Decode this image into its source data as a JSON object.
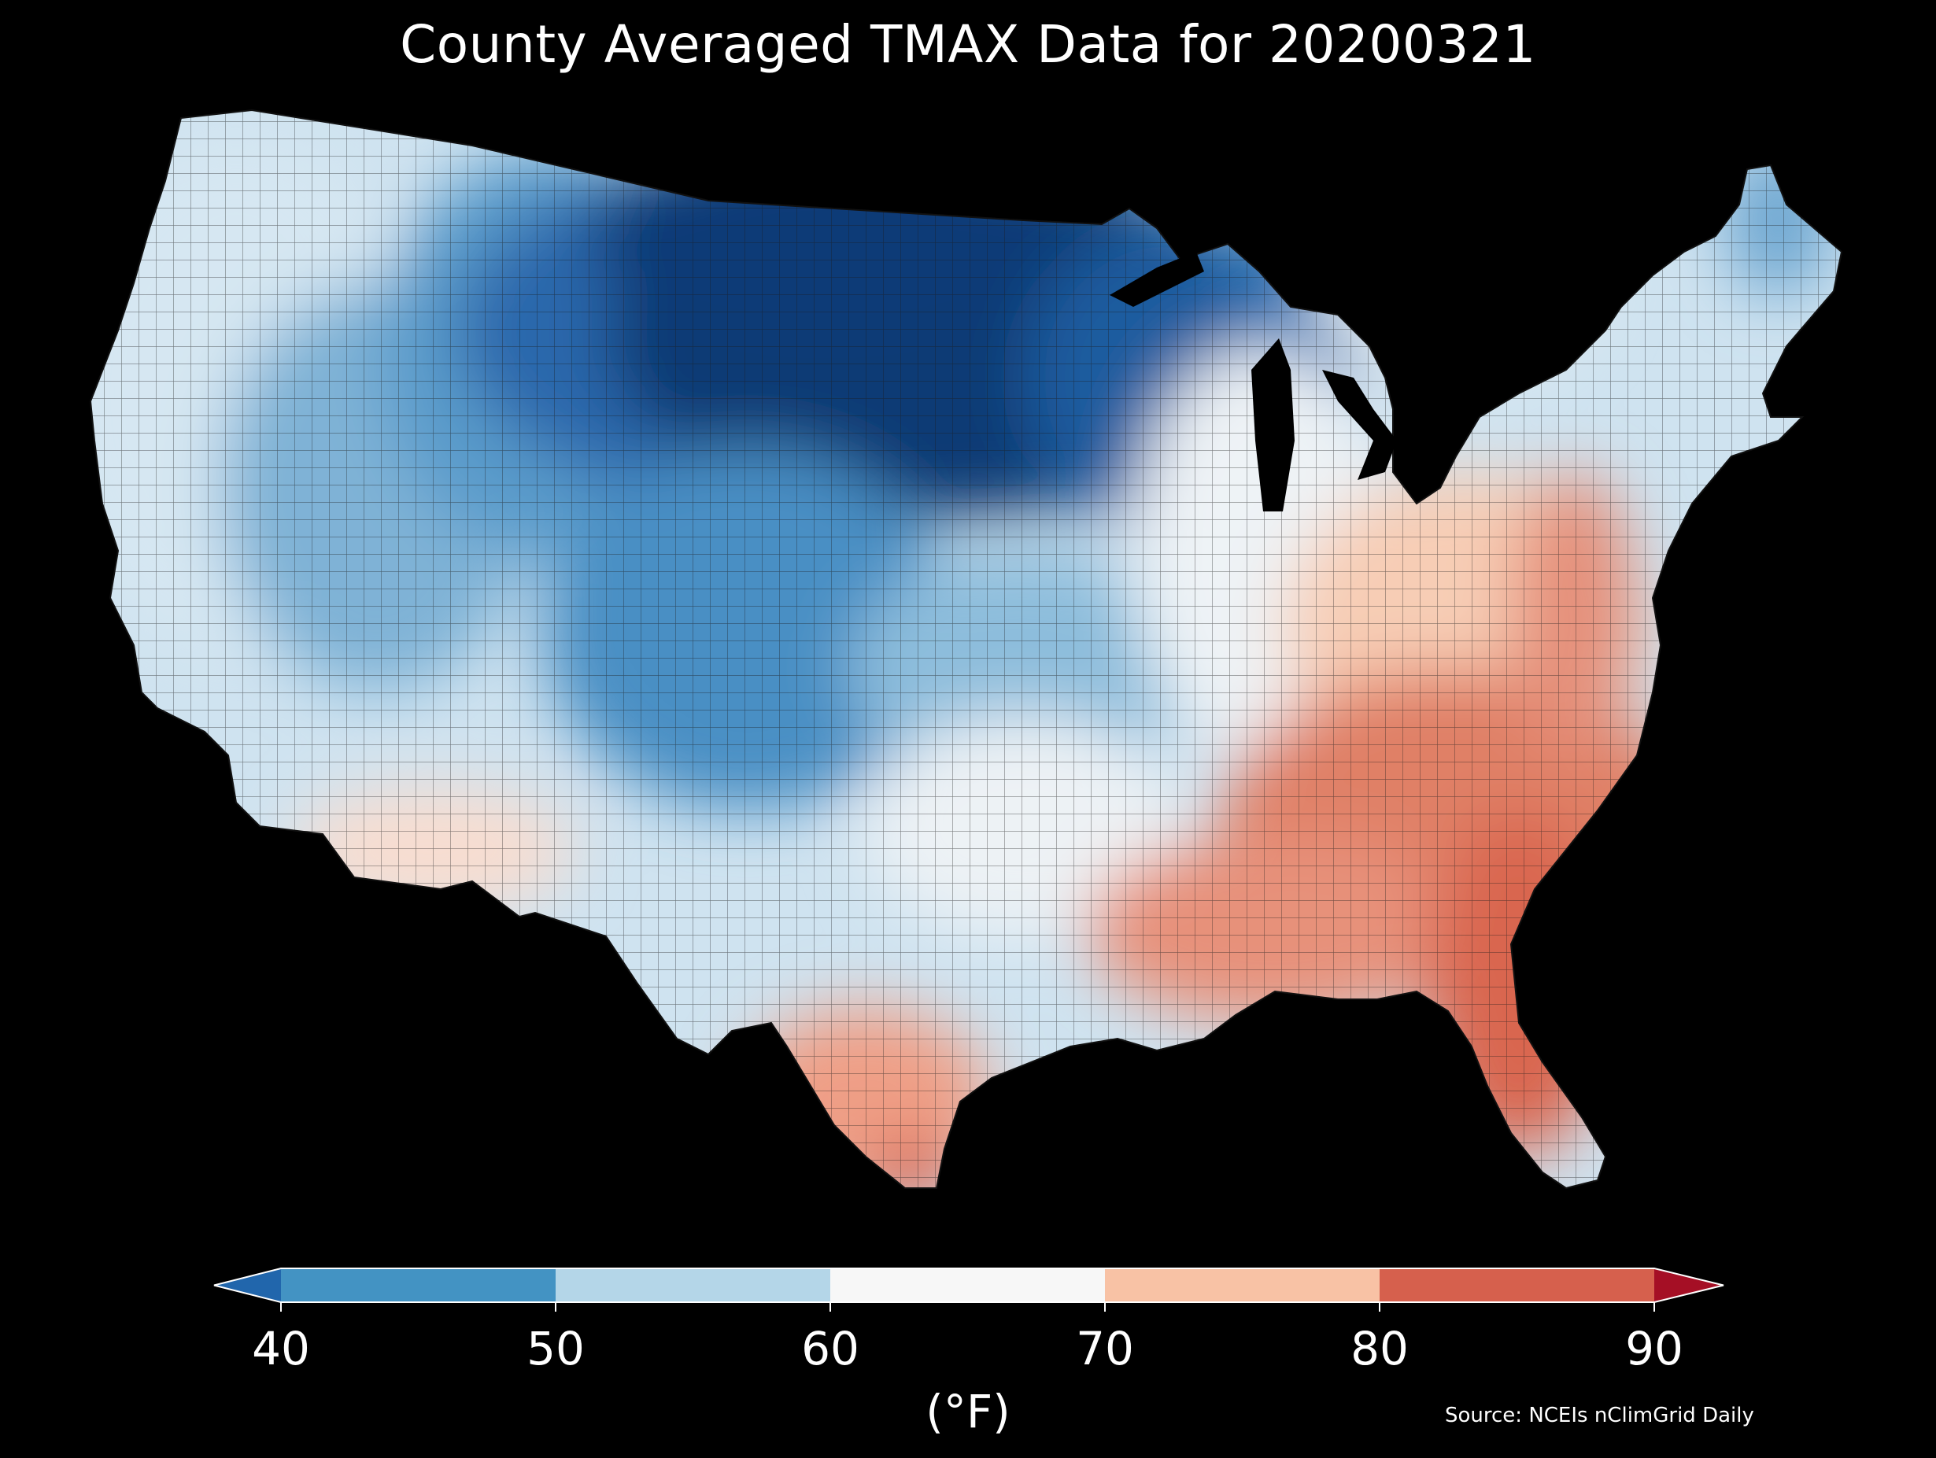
{
  "title": "County Averaged TMAX Data for 20200321",
  "unit_label": "(°F)",
  "source": "Source: NCEIs nClimGrid Daily",
  "colorbar": {
    "ticks": [
      "40",
      "50",
      "60",
      "70",
      "80",
      "90"
    ],
    "bins": [
      {
        "range": [
          null,
          40
        ],
        "color": "#2166ac"
      },
      {
        "range": [
          40,
          50
        ],
        "color": "#4393c3"
      },
      {
        "range": [
          50,
          60
        ],
        "color": "#b4d6e8"
      },
      {
        "range": [
          60,
          70
        ],
        "color": "#f7f7f7"
      },
      {
        "range": [
          70,
          80
        ],
        "color": "#f8c2a5"
      },
      {
        "range": [
          80,
          90
        ],
        "color": "#d6604d"
      },
      {
        "range": [
          90,
          null
        ],
        "color": "#a50f25"
      }
    ]
  },
  "map_data": {
    "variable": "TMAX",
    "date": "20200321",
    "units": "°F",
    "region": "Contiguous United States counties",
    "colors": {
      "background": "#000000",
      "county_border": "#222222",
      "deep_cold": "#08306b",
      "cold": "#2166ac",
      "cool": "#4393c3",
      "mild_cool": "#b4d6e8",
      "neutral": "#f7f7f7",
      "warm": "#f8c2a5",
      "hot": "#d6604d"
    }
  }
}
